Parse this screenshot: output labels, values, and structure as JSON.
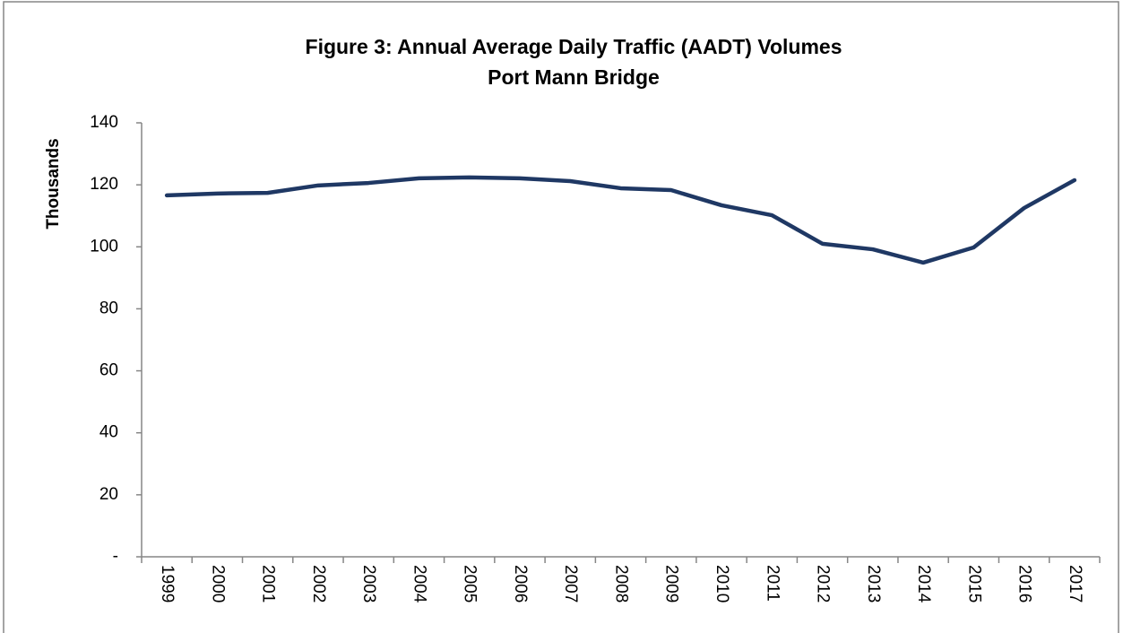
{
  "chart_data": {
    "type": "line",
    "title": "Figure 3: Annual Average Daily Traffic (AADT) Volumes",
    "subtitle": "Port Mann Bridge",
    "y_label": "Thousands",
    "categories": [
      "1999",
      "2000",
      "2001",
      "2002",
      "2003",
      "2004",
      "2005",
      "2006",
      "2007",
      "2008",
      "2009",
      "2010",
      "2011",
      "2012",
      "2013",
      "2014",
      "2015",
      "2016",
      "2017"
    ],
    "series": [
      {
        "color": "#1f3864",
        "values": [
          116.6,
          117.2,
          117.4,
          119.8,
          120.6,
          122.1,
          122.4,
          122.1,
          121.2,
          118.9,
          118.3,
          113.4,
          110.2,
          101.0,
          99.2,
          94.9,
          99.8,
          112.5,
          121.5
        ]
      }
    ],
    "ylim": [
      0,
      140
    ],
    "yticks": [
      {
        "value": 0,
        "label": "-"
      },
      20,
      40,
      60,
      80,
      100,
      120,
      140
    ],
    "grid": false
  }
}
